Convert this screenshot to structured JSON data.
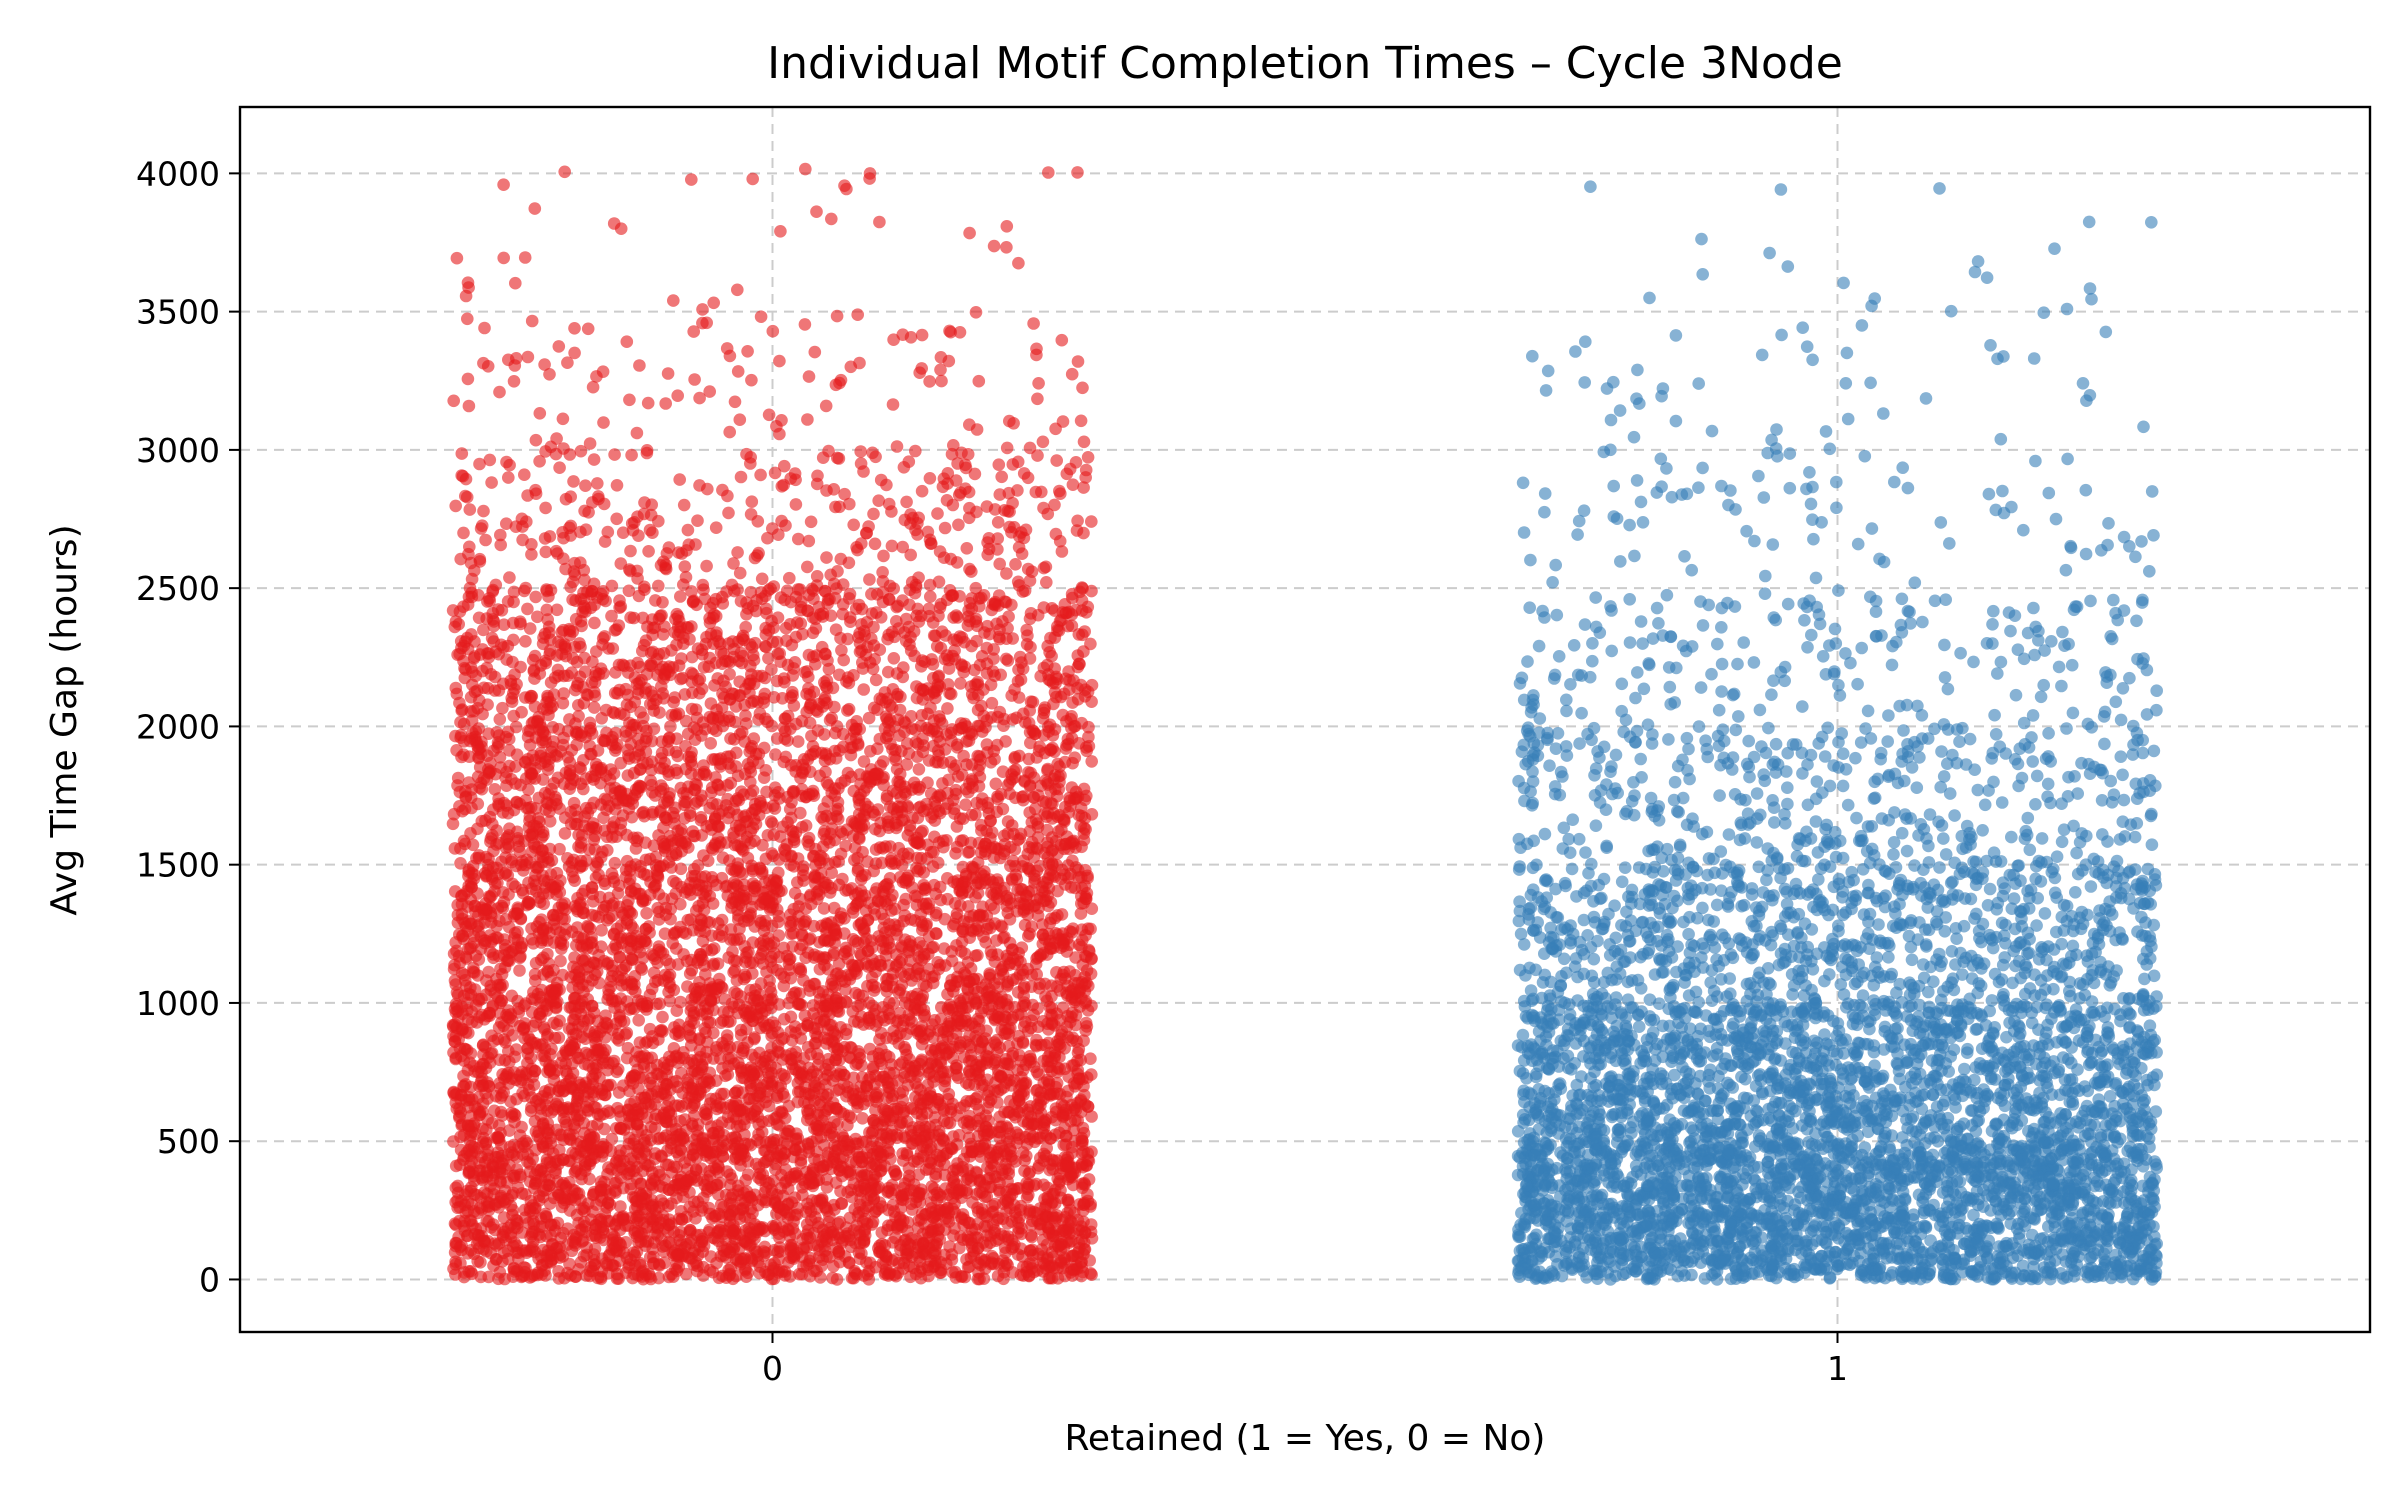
{
  "chart_data": {
    "type": "scatter",
    "title": "Individual Motif Completion Times – Cycle 3Node",
    "xlabel": "Retained (1 = Yes, 0 = No)",
    "ylabel": "Avg Time Gap (hours)",
    "categories": [
      "0",
      "1"
    ],
    "x_ticks": [
      "0",
      "1"
    ],
    "xlim": [
      -0.5,
      1.5
    ],
    "ylim": [
      -190,
      4240
    ],
    "y_ticks": [
      0,
      500,
      1000,
      1500,
      2000,
      2500,
      3000,
      3500,
      4000
    ],
    "jitter_half_width": 0.3,
    "grid": true,
    "marker_alpha": 0.6,
    "series": [
      {
        "x": 0,
        "color": "#e41a1c",
        "approx_max": 4040,
        "value_density": [
          {
            "range": [
              0,
              500
            ],
            "weight": 30
          },
          {
            "range": [
              500,
              1000
            ],
            "weight": 26
          },
          {
            "range": [
              1000,
              1500
            ],
            "weight": 22
          },
          {
            "range": [
              1500,
              2000
            ],
            "weight": 18
          },
          {
            "range": [
              2000,
              2500
            ],
            "weight": 14
          },
          {
            "range": [
              2500,
              3000
            ],
            "weight": 5
          },
          {
            "range": [
              3000,
              3500
            ],
            "weight": 1.6
          },
          {
            "range": [
              3500,
              4050
            ],
            "weight": 0.5
          }
        ]
      },
      {
        "x": 1,
        "color": "#377eb8",
        "approx_max": 4040,
        "value_density": [
          {
            "range": [
              0,
              500
            ],
            "weight": 34
          },
          {
            "range": [
              500,
              1000
            ],
            "weight": 22
          },
          {
            "range": [
              1000,
              1500
            ],
            "weight": 12
          },
          {
            "range": [
              1500,
              2000
            ],
            "weight": 6
          },
          {
            "range": [
              2000,
              2500
            ],
            "weight": 3
          },
          {
            "range": [
              2500,
              3000
            ],
            "weight": 1.3
          },
          {
            "range": [
              3000,
              3500
            ],
            "weight": 0.7
          },
          {
            "range": [
              3500,
              4050
            ],
            "weight": 0.3
          }
        ]
      }
    ]
  }
}
